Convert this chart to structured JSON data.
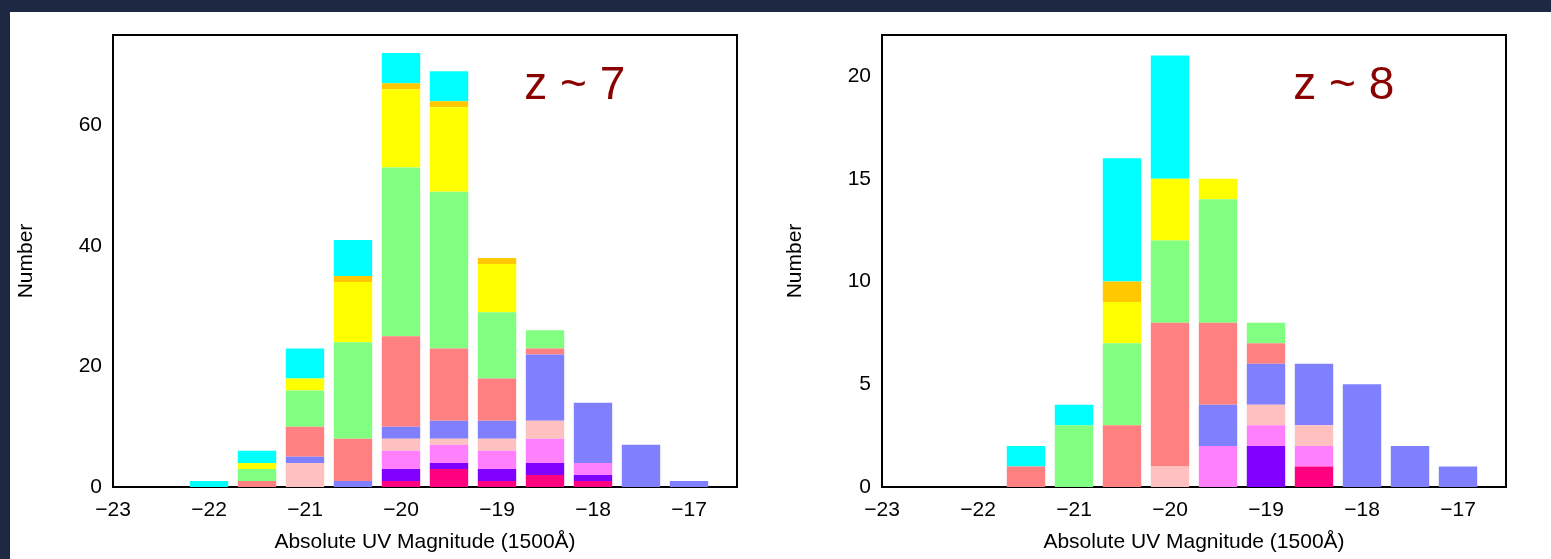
{
  "chart_data": [
    {
      "type": "bar",
      "stacked": true,
      "annotations": [
        "z ~ 7"
      ],
      "xlabel": "Absolute UV Magnitude (1500Å)",
      "ylabel": "Number",
      "x": [
        -22,
        -21.5,
        -21,
        -20.5,
        -20,
        -19.5,
        -19,
        -18.5,
        -18,
        -17.5,
        -17
      ],
      "xlim": [
        -23,
        -16.5
      ],
      "xticks": [
        -23,
        -22,
        -21,
        -20,
        -19,
        -18,
        -17
      ],
      "ylim": [
        0,
        75
      ],
      "yticks": [
        0,
        20,
        40,
        60
      ],
      "series": [
        {
          "color": "#ff0080",
          "values": [
            null,
            null,
            null,
            null,
            1,
            3,
            1,
            2,
            1,
            null,
            null
          ]
        },
        {
          "color": "#8000ff",
          "values": [
            null,
            null,
            null,
            null,
            2,
            1,
            2,
            2,
            1,
            null,
            null
          ]
        },
        {
          "color": "#ff80ff",
          "values": [
            null,
            null,
            null,
            null,
            3,
            3,
            3,
            4,
            2,
            null,
            null
          ]
        },
        {
          "color": "#ffc0c0",
          "values": [
            null,
            null,
            4,
            null,
            2,
            1,
            2,
            3,
            null,
            null,
            null
          ]
        },
        {
          "color": "#8080ff",
          "values": [
            null,
            null,
            1,
            1,
            2,
            3,
            3,
            11,
            10,
            7,
            1
          ]
        },
        {
          "color": "#ff8080",
          "values": [
            null,
            1,
            5,
            7,
            15,
            12,
            7,
            1,
            null,
            null,
            null
          ]
        },
        {
          "color": "#80ff80",
          "values": [
            null,
            2,
            6,
            16,
            28,
            26,
            11,
            3,
            null,
            null,
            null
          ]
        },
        {
          "color": "#ffff00",
          "values": [
            null,
            1,
            2,
            10,
            13,
            14,
            8,
            null,
            null,
            null,
            null
          ]
        },
        {
          "color": "#ffc800",
          "values": [
            null,
            null,
            null,
            1,
            1,
            1,
            1,
            null,
            null,
            null,
            null
          ]
        },
        {
          "color": "#00ffff",
          "values": [
            1,
            2,
            5,
            6,
            5,
            5,
            null,
            null,
            null,
            null,
            null
          ]
        }
      ]
    },
    {
      "type": "bar",
      "stacked": true,
      "annotations": [
        "z ~ 8"
      ],
      "xlabel": "Absolute UV Magnitude (1500Å)",
      "ylabel": "Number",
      "x": [
        -21.5,
        -21,
        -20.5,
        -20,
        -19.5,
        -19,
        -18.5,
        -18,
        -17.5,
        -17
      ],
      "xlim": [
        -23,
        -16.5
      ],
      "xticks": [
        -23,
        -22,
        -21,
        -20,
        -19,
        -18,
        -17
      ],
      "ylim": [
        0,
        22
      ],
      "yticks": [
        0,
        5,
        10,
        15,
        20
      ],
      "series": [
        {
          "color": "#ff0080",
          "values": [
            null,
            null,
            null,
            null,
            null,
            null,
            1,
            null,
            null,
            null
          ]
        },
        {
          "color": "#8000ff",
          "values": [
            null,
            null,
            null,
            null,
            null,
            2,
            null,
            null,
            null,
            null
          ]
        },
        {
          "color": "#ff80ff",
          "values": [
            null,
            null,
            null,
            null,
            2,
            1,
            1,
            null,
            null,
            null
          ]
        },
        {
          "color": "#ffc0c0",
          "values": [
            null,
            null,
            null,
            1,
            null,
            1,
            1,
            null,
            null,
            null
          ]
        },
        {
          "color": "#8080ff",
          "values": [
            null,
            null,
            null,
            null,
            2,
            2,
            3,
            5,
            2,
            1
          ]
        },
        {
          "color": "#ff8080",
          "values": [
            1,
            null,
            3,
            7,
            4,
            1,
            null,
            null,
            null,
            null
          ]
        },
        {
          "color": "#80ff80",
          "values": [
            null,
            3,
            4,
            4,
            6,
            1,
            null,
            null,
            null,
            null
          ]
        },
        {
          "color": "#ffff00",
          "values": [
            null,
            null,
            2,
            3,
            1,
            null,
            null,
            null,
            null,
            null
          ]
        },
        {
          "color": "#ffc800",
          "values": [
            null,
            null,
            1,
            null,
            null,
            null,
            null,
            null,
            null,
            null
          ]
        },
        {
          "color": "#00ffff",
          "values": [
            1,
            1,
            6,
            6,
            null,
            null,
            null,
            null,
            null,
            null
          ]
        }
      ]
    }
  ]
}
